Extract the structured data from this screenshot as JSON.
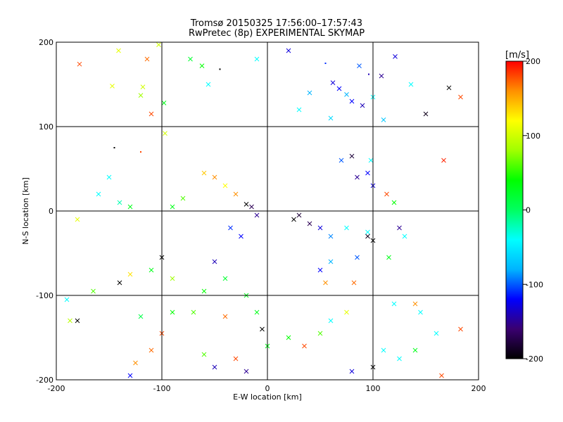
{
  "chart_data": {
    "type": "scatter",
    "title": "Tromsø 20150325 17:56:00–17:57:43",
    "subtitle": "RwPretec (8p) EXPERIMENTAL SKYMAP",
    "xlabel": "E-W location [km]",
    "ylabel": "N-S location [km]",
    "xlim": [
      -200,
      200
    ],
    "ylim": [
      -200,
      200
    ],
    "x_ticks": [
      -200,
      -100,
      0,
      100,
      200
    ],
    "y_ticks": [
      -200,
      -100,
      0,
      100,
      200
    ],
    "grid": true,
    "marker_types": [
      "x",
      "dot"
    ],
    "colorbar": {
      "label": "[m/s]",
      "range": [
        -200,
        200
      ],
      "ticks": [
        200,
        100,
        0,
        -100,
        -200
      ],
      "colors": [
        "#000000",
        "#3a0070",
        "#0000ff",
        "#00b4ff",
        "#00ffff",
        "#00ff60",
        "#00ff00",
        "#a0ff00",
        "#ffff00",
        "#ff9000",
        "#ff0000"
      ]
    },
    "points": [
      {
        "x": -178,
        "y": 174,
        "v": 180,
        "m": "x"
      },
      {
        "x": -141,
        "y": 190,
        "v": 110,
        "m": "x"
      },
      {
        "x": -114,
        "y": 180,
        "v": 170,
        "m": "x"
      },
      {
        "x": -103,
        "y": 197,
        "v": 100,
        "m": "x"
      },
      {
        "x": -97,
        "y": 92,
        "v": 100,
        "m": "x"
      },
      {
        "x": -98,
        "y": 128,
        "v": 30,
        "m": "x"
      },
      {
        "x": -120,
        "y": 137,
        "v": 80,
        "m": "x"
      },
      {
        "x": -147,
        "y": 148,
        "v": 110,
        "m": "x"
      },
      {
        "x": -118,
        "y": 147,
        "v": 100,
        "m": "x"
      },
      {
        "x": -110,
        "y": 115,
        "v": 180,
        "m": "x"
      },
      {
        "x": -73,
        "y": 180,
        "v": 20,
        "m": "x"
      },
      {
        "x": -62,
        "y": 172,
        "v": 40,
        "m": "x"
      },
      {
        "x": -56,
        "y": 150,
        "v": -40,
        "m": "x"
      },
      {
        "x": -45,
        "y": 168,
        "v": -200,
        "m": "dot"
      },
      {
        "x": -10,
        "y": 180,
        "v": -40,
        "m": "x"
      },
      {
        "x": 20,
        "y": 190,
        "v": -130,
        "m": "x"
      },
      {
        "x": 55,
        "y": 175,
        "v": -110,
        "m": "dot"
      },
      {
        "x": 62,
        "y": 152,
        "v": -130,
        "m": "x"
      },
      {
        "x": 68,
        "y": 145,
        "v": -120,
        "m": "x"
      },
      {
        "x": 75,
        "y": 138,
        "v": -80,
        "m": "x"
      },
      {
        "x": 87,
        "y": 172,
        "v": -100,
        "m": "x"
      },
      {
        "x": 96,
        "y": 162,
        "v": -140,
        "m": "dot"
      },
      {
        "x": 108,
        "y": 160,
        "v": -150,
        "m": "x"
      },
      {
        "x": 121,
        "y": 183,
        "v": -130,
        "m": "x"
      },
      {
        "x": 136,
        "y": 150,
        "v": -40,
        "m": "x"
      },
      {
        "x": 150,
        "y": 115,
        "v": -190,
        "m": "x"
      },
      {
        "x": 172,
        "y": 146,
        "v": -200,
        "m": "x"
      },
      {
        "x": 183,
        "y": 135,
        "v": 180,
        "m": "x"
      },
      {
        "x": 100,
        "y": 135,
        "v": -40,
        "m": "x"
      },
      {
        "x": 80,
        "y": 130,
        "v": -120,
        "m": "x"
      },
      {
        "x": 90,
        "y": 125,
        "v": -140,
        "m": "x"
      },
      {
        "x": 110,
        "y": 108,
        "v": -70,
        "m": "x"
      },
      {
        "x": 60,
        "y": 110,
        "v": -60,
        "m": "x"
      },
      {
        "x": 30,
        "y": 120,
        "v": -40,
        "m": "x"
      },
      {
        "x": 40,
        "y": 140,
        "v": -80,
        "m": "x"
      },
      {
        "x": 167,
        "y": 60,
        "v": 190,
        "m": "x"
      },
      {
        "x": 113,
        "y": 20,
        "v": 180,
        "m": "x"
      },
      {
        "x": 120,
        "y": 10,
        "v": 40,
        "m": "x"
      },
      {
        "x": 100,
        "y": 30,
        "v": -130,
        "m": "x"
      },
      {
        "x": 85,
        "y": 40,
        "v": -150,
        "m": "x"
      },
      {
        "x": 95,
        "y": 45,
        "v": -120,
        "m": "x"
      },
      {
        "x": 80,
        "y": 65,
        "v": -180,
        "m": "x"
      },
      {
        "x": 98,
        "y": 60,
        "v": -40,
        "m": "x"
      },
      {
        "x": 70,
        "y": 60,
        "v": -100,
        "m": "x"
      },
      {
        "x": -150,
        "y": 40,
        "v": -40,
        "m": "x"
      },
      {
        "x": -160,
        "y": 20,
        "v": -40,
        "m": "x"
      },
      {
        "x": -140,
        "y": 10,
        "v": -20,
        "m": "x"
      },
      {
        "x": -130,
        "y": 5,
        "v": 30,
        "m": "x"
      },
      {
        "x": -120,
        "y": 70,
        "v": 180,
        "m": "dot"
      },
      {
        "x": -145,
        "y": 75,
        "v": -200,
        "m": "dot"
      },
      {
        "x": -50,
        "y": 40,
        "v": 160,
        "m": "x"
      },
      {
        "x": -60,
        "y": 45,
        "v": 140,
        "m": "x"
      },
      {
        "x": -40,
        "y": 30,
        "v": 120,
        "m": "x"
      },
      {
        "x": -30,
        "y": 20,
        "v": 160,
        "m": "x"
      },
      {
        "x": -80,
        "y": 15,
        "v": 60,
        "m": "x"
      },
      {
        "x": -90,
        "y": 5,
        "v": 30,
        "m": "x"
      },
      {
        "x": -20,
        "y": 8,
        "v": -200,
        "m": "x"
      },
      {
        "x": -15,
        "y": 5,
        "v": -170,
        "m": "x"
      },
      {
        "x": -10,
        "y": -5,
        "v": -150,
        "m": "x"
      },
      {
        "x": -35,
        "y": -20,
        "v": -110,
        "m": "x"
      },
      {
        "x": -25,
        "y": -30,
        "v": -120,
        "m": "x"
      },
      {
        "x": 25,
        "y": -10,
        "v": -200,
        "m": "x"
      },
      {
        "x": 30,
        "y": -5,
        "v": -180,
        "m": "x"
      },
      {
        "x": 40,
        "y": -15,
        "v": -170,
        "m": "x"
      },
      {
        "x": 50,
        "y": -20,
        "v": -130,
        "m": "x"
      },
      {
        "x": 60,
        "y": -30,
        "v": -90,
        "m": "x"
      },
      {
        "x": 75,
        "y": -20,
        "v": -40,
        "m": "x"
      },
      {
        "x": 95,
        "y": -25,
        "v": -40,
        "m": "x"
      },
      {
        "x": 100,
        "y": -35,
        "v": -200,
        "m": "x"
      },
      {
        "x": 95,
        "y": -30,
        "v": -190,
        "m": "x"
      },
      {
        "x": 125,
        "y": -20,
        "v": -150,
        "m": "x"
      },
      {
        "x": 130,
        "y": -30,
        "v": -40,
        "m": "x"
      },
      {
        "x": 115,
        "y": -55,
        "v": 30,
        "m": "x"
      },
      {
        "x": 85,
        "y": -55,
        "v": -100,
        "m": "x"
      },
      {
        "x": 60,
        "y": -60,
        "v": -80,
        "m": "x"
      },
      {
        "x": 50,
        "y": -70,
        "v": -120,
        "m": "x"
      },
      {
        "x": 55,
        "y": -85,
        "v": 160,
        "m": "x"
      },
      {
        "x": 82,
        "y": -85,
        "v": 170,
        "m": "x"
      },
      {
        "x": -180,
        "y": -10,
        "v": 110,
        "m": "x"
      },
      {
        "x": -190,
        "y": -105,
        "v": -40,
        "m": "x"
      },
      {
        "x": -180,
        "y": -130,
        "v": -200,
        "m": "x"
      },
      {
        "x": -187,
        "y": -130,
        "v": 90,
        "m": "x"
      },
      {
        "x": -140,
        "y": -85,
        "v": -200,
        "m": "x"
      },
      {
        "x": -165,
        "y": -95,
        "v": 60,
        "m": "x"
      },
      {
        "x": -130,
        "y": -75,
        "v": 130,
        "m": "x"
      },
      {
        "x": -100,
        "y": -55,
        "v": -200,
        "m": "x"
      },
      {
        "x": -110,
        "y": -70,
        "v": 30,
        "m": "x"
      },
      {
        "x": -90,
        "y": -80,
        "v": 80,
        "m": "x"
      },
      {
        "x": -50,
        "y": -60,
        "v": -140,
        "m": "x"
      },
      {
        "x": -40,
        "y": -80,
        "v": 20,
        "m": "x"
      },
      {
        "x": -60,
        "y": -95,
        "v": 40,
        "m": "x"
      },
      {
        "x": -20,
        "y": -100,
        "v": 30,
        "m": "x"
      },
      {
        "x": -10,
        "y": -120,
        "v": 30,
        "m": "x"
      },
      {
        "x": -5,
        "y": -140,
        "v": -200,
        "m": "x"
      },
      {
        "x": -40,
        "y": -125,
        "v": 170,
        "m": "x"
      },
      {
        "x": -70,
        "y": -120,
        "v": 60,
        "m": "x"
      },
      {
        "x": -90,
        "y": -120,
        "v": 40,
        "m": "x"
      },
      {
        "x": -120,
        "y": -125,
        "v": 10,
        "m": "x"
      },
      {
        "x": -100,
        "y": -145,
        "v": 180,
        "m": "x"
      },
      {
        "x": -110,
        "y": -165,
        "v": 170,
        "m": "x"
      },
      {
        "x": -125,
        "y": -180,
        "v": 160,
        "m": "x"
      },
      {
        "x": -130,
        "y": -195,
        "v": -120,
        "m": "x"
      },
      {
        "x": -60,
        "y": -170,
        "v": 60,
        "m": "x"
      },
      {
        "x": -50,
        "y": -185,
        "v": -140,
        "m": "x"
      },
      {
        "x": -30,
        "y": -175,
        "v": 180,
        "m": "x"
      },
      {
        "x": -20,
        "y": -190,
        "v": -150,
        "m": "x"
      },
      {
        "x": 0,
        "y": -160,
        "v": 30,
        "m": "x"
      },
      {
        "x": 20,
        "y": -150,
        "v": 40,
        "m": "x"
      },
      {
        "x": 35,
        "y": -160,
        "v": 180,
        "m": "x"
      },
      {
        "x": 50,
        "y": -145,
        "v": 60,
        "m": "x"
      },
      {
        "x": 60,
        "y": -130,
        "v": -40,
        "m": "x"
      },
      {
        "x": 75,
        "y": -120,
        "v": 110,
        "m": "x"
      },
      {
        "x": 80,
        "y": -190,
        "v": -130,
        "m": "x"
      },
      {
        "x": 100,
        "y": -185,
        "v": -200,
        "m": "x"
      },
      {
        "x": 110,
        "y": -165,
        "v": -40,
        "m": "x"
      },
      {
        "x": 125,
        "y": -175,
        "v": -40,
        "m": "x"
      },
      {
        "x": 140,
        "y": -165,
        "v": 30,
        "m": "x"
      },
      {
        "x": 145,
        "y": -120,
        "v": -40,
        "m": "x"
      },
      {
        "x": 160,
        "y": -145,
        "v": -40,
        "m": "x"
      },
      {
        "x": 165,
        "y": -195,
        "v": 180,
        "m": "x"
      },
      {
        "x": 183,
        "y": -140,
        "v": 180,
        "m": "x"
      },
      {
        "x": 140,
        "y": -110,
        "v": 160,
        "m": "x"
      },
      {
        "x": 120,
        "y": -110,
        "v": -40,
        "m": "x"
      }
    ]
  }
}
